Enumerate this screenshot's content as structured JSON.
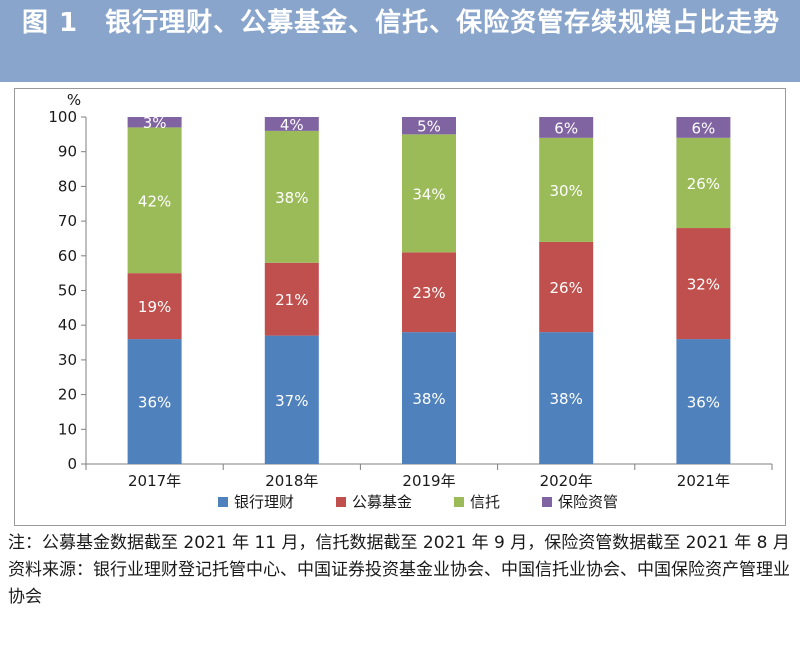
{
  "header": {
    "title": "图 1　银行理财、公募基金、信托、保险资管存续规模占比走势"
  },
  "chart_data": {
    "type": "bar",
    "stacked": true,
    "categories": [
      "2017年",
      "2018年",
      "2019年",
      "2020年",
      "2021年"
    ],
    "series": [
      {
        "name": "银行理财",
        "values": [
          36,
          37,
          38,
          38,
          36
        ],
        "labels": [
          "36%",
          "37%",
          "38%",
          "38%",
          "36%"
        ],
        "color": "#4f81bd"
      },
      {
        "name": "公募基金",
        "values": [
          19,
          21,
          23,
          26,
          32
        ],
        "labels": [
          "19%",
          "21%",
          "23%",
          "26%",
          "32%"
        ],
        "color": "#c0504d"
      },
      {
        "name": "信托",
        "values": [
          42,
          38,
          34,
          30,
          26
        ],
        "labels": [
          "42%",
          "38%",
          "34%",
          "30%",
          "26%"
        ],
        "color": "#9bbb59"
      },
      {
        "name": "保险资管",
        "values": [
          3,
          4,
          5,
          6,
          6
        ],
        "labels": [
          "3%",
          "4%",
          "5%",
          "6%",
          "6%"
        ],
        "color": "#8064a2"
      }
    ],
    "ylabel": "%",
    "ylim": [
      0,
      100
    ],
    "yticks": [
      0,
      10,
      20,
      30,
      40,
      50,
      60,
      70,
      80,
      90,
      100
    ],
    "grid": false,
    "legend": "bottom"
  },
  "notes": {
    "line1": "注：公募基金数据截至 2021 年 11 月，信托数据截至 2021 年 9 月，保险资管数据截至 2021 年 8 月",
    "line2": "资料来源：银行业理财登记托管中心、中国证券投资基金业协会、中国信托业协会、中国保险资产管理业协会"
  }
}
